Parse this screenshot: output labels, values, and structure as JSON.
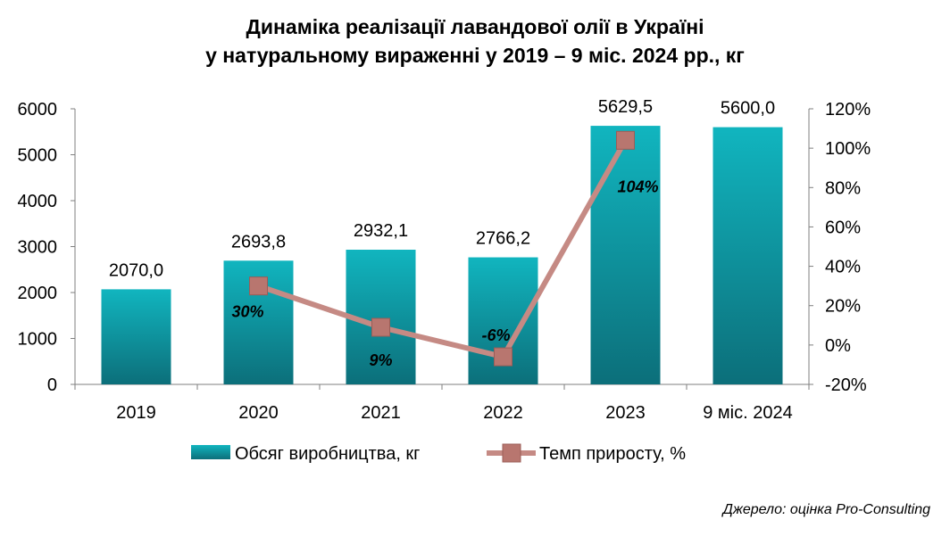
{
  "title_line1": "Динаміка реалізації лавандової олії в Україні",
  "title_line2": "у натуральному вираженні у 2019 – 9 міс. 2024 рр., кг",
  "source": "Джерело: оцінка Pro-Consulting",
  "colors": {
    "bar_top": "#11b5bf",
    "bar_bottom": "#0c6f7a",
    "line": "#c58a84",
    "marker": "#b8766f",
    "axis": "#7f7f7f"
  },
  "chart_data": {
    "type": "bar",
    "categories": [
      "2019",
      "2020",
      "2021",
      "2022",
      "2023",
      "9 міс. 2024"
    ],
    "series": [
      {
        "name": "Обсяг виробництва, кг",
        "axis": "left",
        "values": [
          2070.0,
          2693.8,
          2932.1,
          2766.2,
          5629.5,
          5600.0
        ],
        "labels": [
          "2070,0",
          "2693,8",
          "2932,1",
          "2766,2",
          "5629,5",
          "5600,0"
        ]
      },
      {
        "name": "Темп приросту, %",
        "type": "line",
        "axis": "right",
        "values": [
          null,
          30,
          9,
          -6,
          104,
          null
        ],
        "labels": [
          "",
          "30%",
          "9%",
          "-6%",
          "104%",
          ""
        ]
      }
    ],
    "y_left": {
      "min": 0,
      "max": 6000,
      "ticks": [
        "0",
        "1000",
        "2000",
        "3000",
        "4000",
        "5000",
        "6000"
      ]
    },
    "y_right": {
      "min": -20,
      "max": 120,
      "ticks": [
        "-20%",
        "0%",
        "20%",
        "40%",
        "60%",
        "80%",
        "100%",
        "120%"
      ]
    },
    "legend": {
      "bar": "Обсяг виробництва, кг",
      "line": "Темп приросту, %",
      "position": "bottom"
    }
  }
}
